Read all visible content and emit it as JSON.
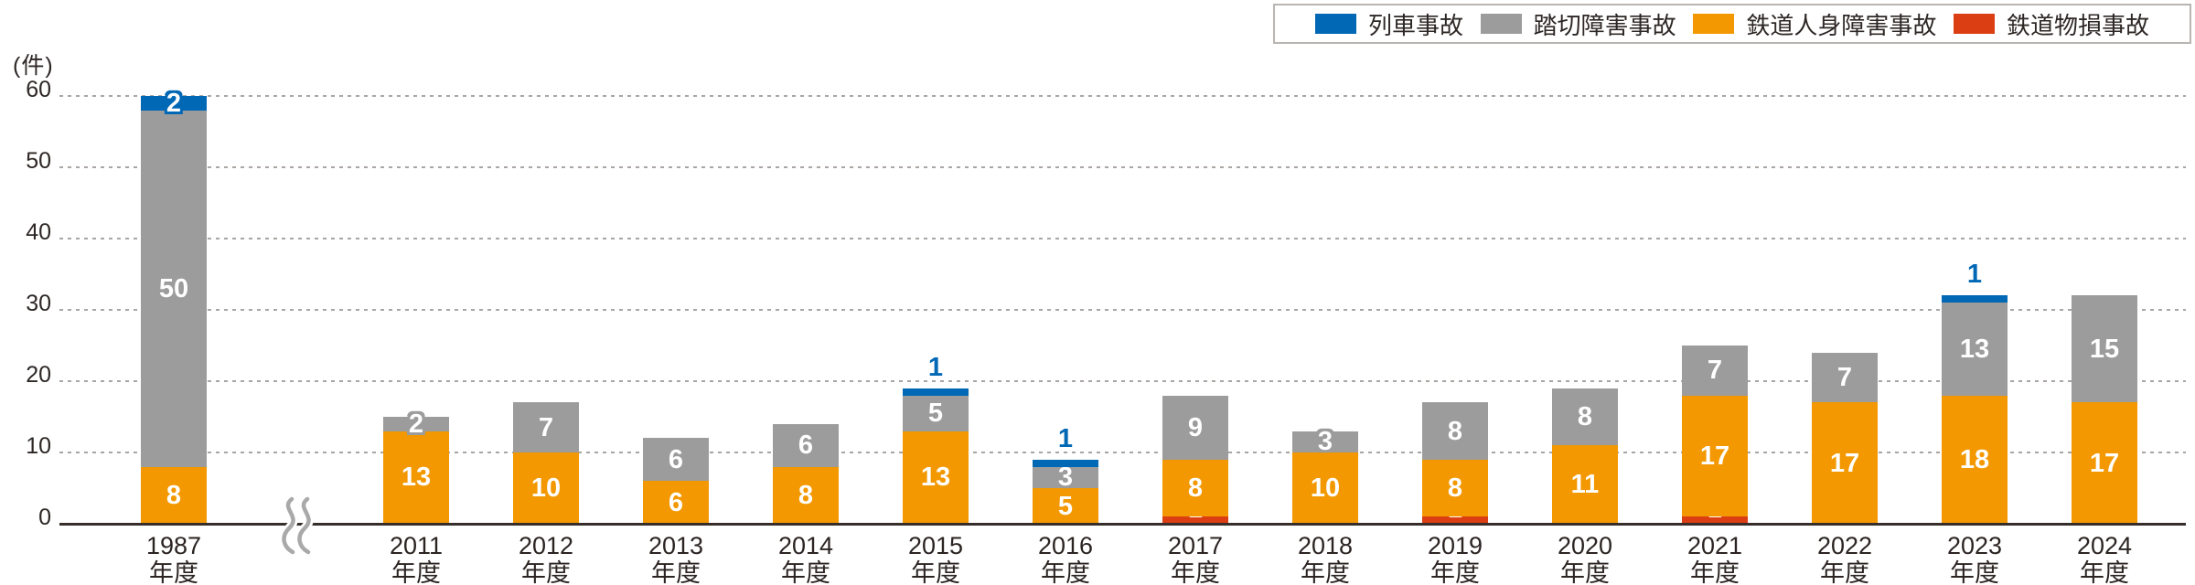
{
  "chart_data": {
    "type": "stacked-bar",
    "title": "",
    "unit_label": "(件)",
    "ylim": [
      0,
      60
    ],
    "yticks": [
      0,
      10,
      20,
      30,
      40,
      50,
      60
    ],
    "grid": "horizontal-dotted",
    "legend_position": "top-right",
    "axis_break_between": [
      "1987",
      "2011"
    ],
    "categories": [
      "1987",
      "2011",
      "2012",
      "2013",
      "2014",
      "2015",
      "2016",
      "2017",
      "2018",
      "2019",
      "2020",
      "2021",
      "2022",
      "2023",
      "2024"
    ],
    "category_suffix": "年度",
    "series": [
      {
        "key": "train-accident",
        "name": "列車事故",
        "color": "#0068b5",
        "values": [
          2,
          0,
          0,
          0,
          0,
          1,
          1,
          0,
          0,
          0,
          0,
          0,
          0,
          1,
          0
        ]
      },
      {
        "key": "crossing-obstruction",
        "name": "踏切障害事故",
        "color": "#9c9c9d",
        "values": [
          50,
          2,
          7,
          6,
          6,
          5,
          3,
          9,
          3,
          8,
          8,
          7,
          7,
          13,
          15
        ]
      },
      {
        "key": "personal-injury",
        "name": "鉄道人身障害事故",
        "color": "#f39800",
        "values": [
          8,
          13,
          10,
          6,
          8,
          13,
          5,
          8,
          10,
          8,
          11,
          17,
          17,
          18,
          17
        ]
      },
      {
        "key": "property-damage",
        "name": "鉄道物損事故",
        "color": "#dc3e13",
        "values": [
          0,
          0,
          0,
          0,
          0,
          0,
          0,
          1,
          0,
          1,
          0,
          1,
          0,
          0,
          0
        ]
      }
    ],
    "colors": {
      "axis": "#362e2b",
      "grid": "#aba5a2",
      "tick_text": "#2d2725",
      "value_text": "#ffffff"
    }
  }
}
